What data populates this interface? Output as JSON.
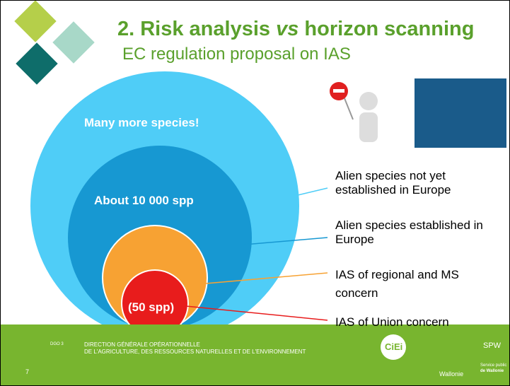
{
  "header": {
    "title_number": "2. Risk analysis ",
    "title_vs": "vs",
    "title_rest": " horizon scanning",
    "subtitle": "EC regulation proposal on IAS"
  },
  "circles": [
    {
      "label": "Many more species!"
    },
    {
      "label": "About 10 000 spp"
    },
    {
      "label": "(50 spp)"
    }
  ],
  "legend": [
    {
      "text": "Alien species not yet established in Europe"
    },
    {
      "text": "Alien species established in Europe"
    },
    {
      "text": "IAS of regional and MS concern"
    },
    {
      "text": "IAS of Union concern"
    }
  ],
  "footer": {
    "line1": "DIRECTION GÉNÉRALE OPÉRATIONNELLE",
    "line2": "DE L'AGRICULTURE, DES RESSOURCES NATURELLES ET DE L'ENVIRONNEMENT",
    "page": "7",
    "logo_ciei": "CiEi",
    "logo_wallonie": "Wallonie",
    "logo_spw": "SPW",
    "logo_spw_sub1": "Service public",
    "logo_spw_sub2": "de Wallonie",
    "logo_dgo": "DGO 3"
  }
}
